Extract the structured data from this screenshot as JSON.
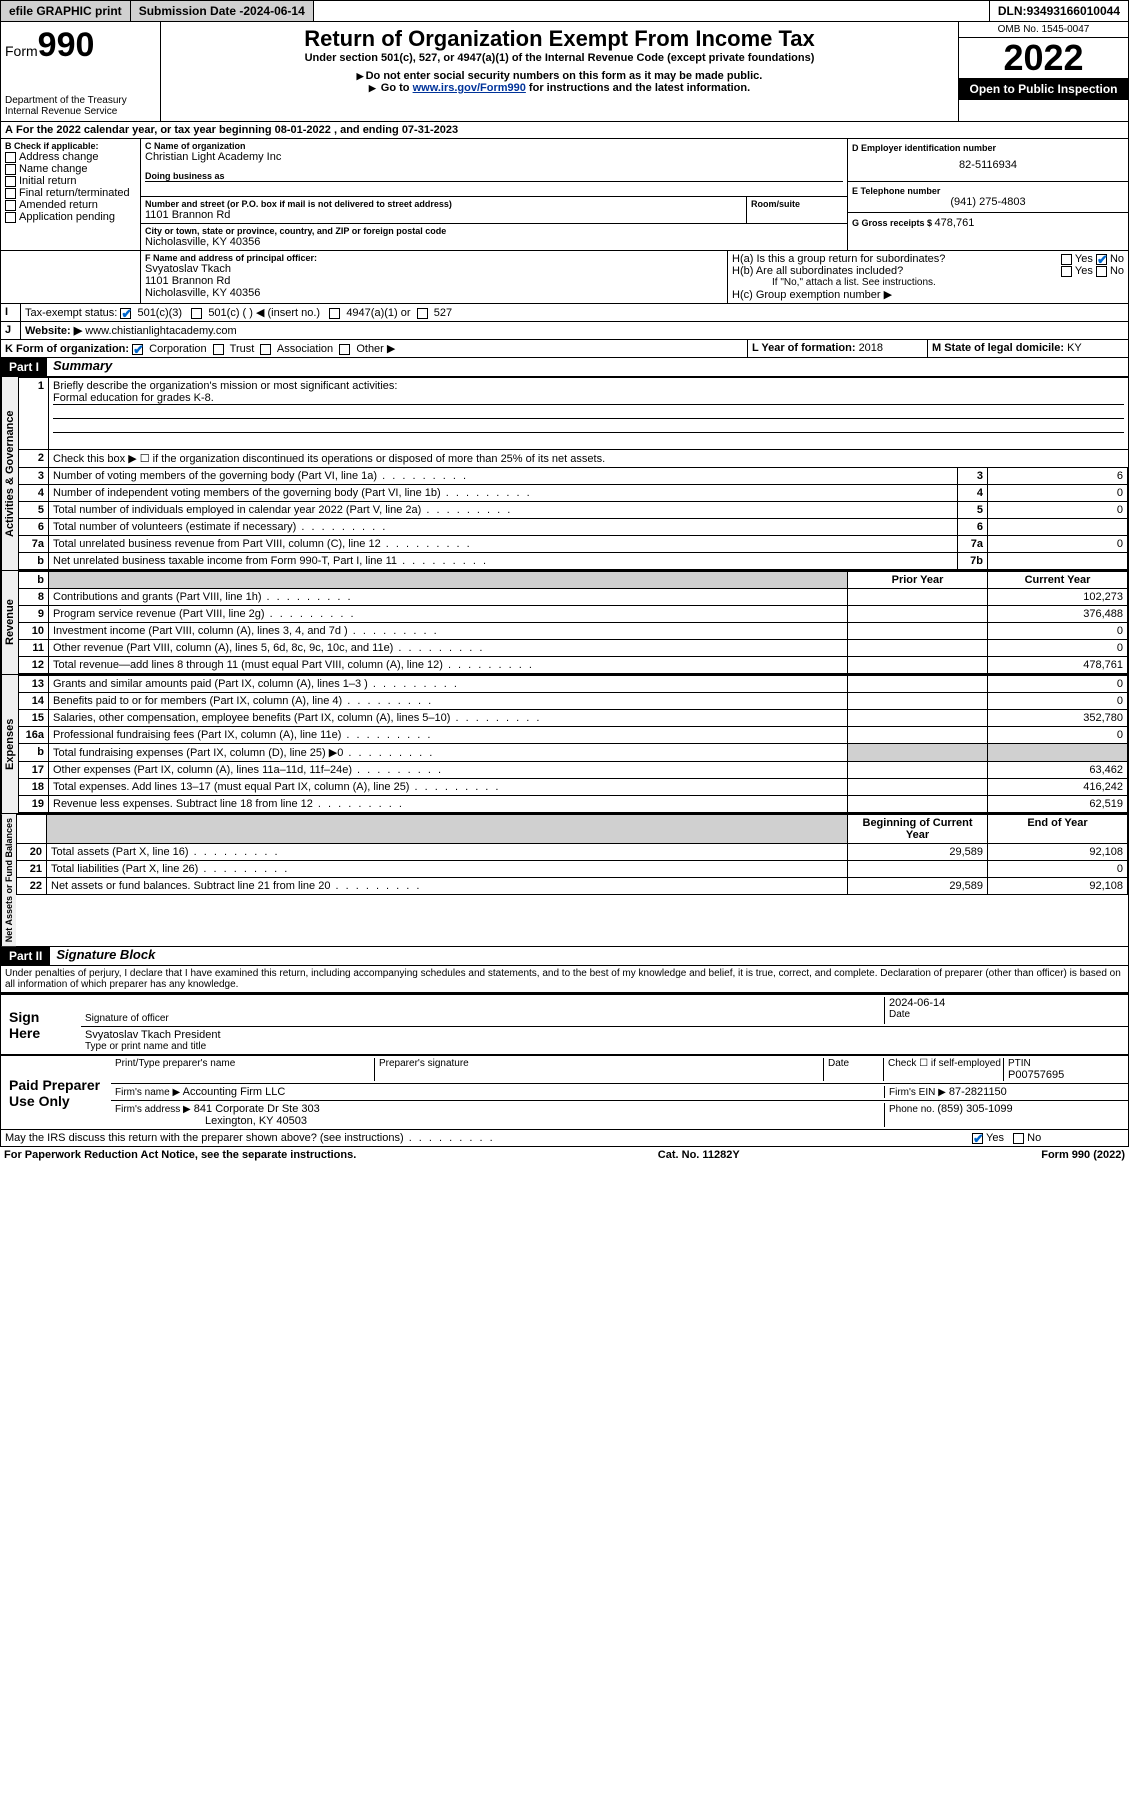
{
  "topbar": {
    "efile": "efile GRAPHIC print",
    "submission_label": "Submission Date - ",
    "submission_date": "2024-06-14",
    "dln_label": "DLN: ",
    "dln": "93493166010044"
  },
  "header": {
    "form_prefix": "Form",
    "form_number": "990",
    "dept": "Department of the Treasury",
    "irs": "Internal Revenue Service",
    "title": "Return of Organization Exempt From Income Tax",
    "subtitle": "Under section 501(c), 527, or 4947(a)(1) of the Internal Revenue Code (except private foundations)",
    "note1": "Do not enter social security numbers on this form as it may be made public.",
    "note2_prefix": "Go to ",
    "note2_link": "www.irs.gov/Form990",
    "note2_suffix": " for instructions and the latest information.",
    "omb": "OMB No. 1545-0047",
    "year": "2022",
    "open": "Open to Public Inspection"
  },
  "line_a": {
    "text": "For the 2022 calendar year, or tax year beginning ",
    "begin": "08-01-2022",
    "mid": " , and ending ",
    "end": "07-31-2023"
  },
  "section_b": {
    "label": "B Check if applicable:",
    "opts": [
      "Address change",
      "Name change",
      "Initial return",
      "Final return/terminated",
      "Amended return",
      "Application pending"
    ]
  },
  "section_c": {
    "name_label": "C Name of organization",
    "name": "Christian Light Academy Inc",
    "dba_label": "Doing business as",
    "dba": "",
    "addr_label": "Number and street (or P.O. box if mail is not delivered to street address)",
    "room_label": "Room/suite",
    "addr": "1101 Brannon Rd",
    "city_label": "City or town, state or province, country, and ZIP or foreign postal code",
    "city": "Nicholasville, KY  40356"
  },
  "section_d": {
    "label": "D Employer identification number",
    "value": "82-5116934"
  },
  "section_e": {
    "label": "E Telephone number",
    "value": "(941) 275-4803"
  },
  "section_g": {
    "label": "G Gross receipts $ ",
    "value": "478,761"
  },
  "section_f": {
    "label": "F Name and address of principal officer:",
    "name": "Svyatoslav Tkach",
    "addr1": "1101 Brannon Rd",
    "addr2": "Nicholasville, KY  40356"
  },
  "section_h": {
    "ha": "H(a)  Is this a group return for subordinates?",
    "hb": "H(b)  Are all subordinates included?",
    "hb_note": "If \"No,\" attach a list. See instructions.",
    "hc": "H(c)  Group exemption number ▶",
    "yes": "Yes",
    "no": "No"
  },
  "section_i": {
    "label": "Tax-exempt status:",
    "opts": [
      "501(c)(3)",
      "501(c) (  ) ◀ (insert no.)",
      "4947(a)(1) or",
      "527"
    ]
  },
  "section_j": {
    "label": "Website: ▶",
    "value": "www.chistianlightacademy.com"
  },
  "section_k": {
    "label": "K Form of organization:",
    "opts": [
      "Corporation",
      "Trust",
      "Association",
      "Other ▶"
    ]
  },
  "section_l": {
    "label": "L Year of formation: ",
    "value": "2018"
  },
  "section_m": {
    "label": "M State of legal domicile: ",
    "value": "KY"
  },
  "part1": {
    "hdr": "Part I",
    "title": "Summary",
    "q1": "Briefly describe the organization's mission or most significant activities:",
    "q1_ans": "Formal education for grades K-8.",
    "q2": "Check this box ▶ ☐  if the organization discontinued its operations or disposed of more than 25% of its net assets.",
    "rows_gov": [
      {
        "n": "3",
        "t": "Number of voting members of the governing body (Part VI, line 1a)",
        "b": "3",
        "v": "6"
      },
      {
        "n": "4",
        "t": "Number of independent voting members of the governing body (Part VI, line 1b)",
        "b": "4",
        "v": "0"
      },
      {
        "n": "5",
        "t": "Total number of individuals employed in calendar year 2022 (Part V, line 2a)",
        "b": "5",
        "v": "0"
      },
      {
        "n": "6",
        "t": "Total number of volunteers (estimate if necessary)",
        "b": "6",
        "v": ""
      },
      {
        "n": "7a",
        "t": "Total unrelated business revenue from Part VIII, column (C), line 12",
        "b": "7a",
        "v": "0"
      },
      {
        "n": "b",
        "t": "Net unrelated business taxable income from Form 990-T, Part I, line 11",
        "b": "7b",
        "v": ""
      }
    ],
    "col_prior": "Prior Year",
    "col_curr": "Current Year",
    "rows_rev": [
      {
        "n": "8",
        "t": "Contributions and grants (Part VIII, line 1h)",
        "p": "",
        "c": "102,273"
      },
      {
        "n": "9",
        "t": "Program service revenue (Part VIII, line 2g)",
        "p": "",
        "c": "376,488"
      },
      {
        "n": "10",
        "t": "Investment income (Part VIII, column (A), lines 3, 4, and 7d )",
        "p": "",
        "c": "0"
      },
      {
        "n": "11",
        "t": "Other revenue (Part VIII, column (A), lines 5, 6d, 8c, 9c, 10c, and 11e)",
        "p": "",
        "c": "0"
      },
      {
        "n": "12",
        "t": "Total revenue—add lines 8 through 11 (must equal Part VIII, column (A), line 12)",
        "p": "",
        "c": "478,761"
      }
    ],
    "rows_exp": [
      {
        "n": "13",
        "t": "Grants and similar amounts paid (Part IX, column (A), lines 1–3 )",
        "p": "",
        "c": "0"
      },
      {
        "n": "14",
        "t": "Benefits paid to or for members (Part IX, column (A), line 4)",
        "p": "",
        "c": "0"
      },
      {
        "n": "15",
        "t": "Salaries, other compensation, employee benefits (Part IX, column (A), lines 5–10)",
        "p": "",
        "c": "352,780"
      },
      {
        "n": "16a",
        "t": "Professional fundraising fees (Part IX, column (A), line 11e)",
        "p": "",
        "c": "0"
      },
      {
        "n": "b",
        "t": "Total fundraising expenses (Part IX, column (D), line 25) ▶0",
        "p": "—",
        "c": "—"
      },
      {
        "n": "17",
        "t": "Other expenses (Part IX, column (A), lines 11a–11d, 11f–24e)",
        "p": "",
        "c": "63,462"
      },
      {
        "n": "18",
        "t": "Total expenses. Add lines 13–17 (must equal Part IX, column (A), line 25)",
        "p": "",
        "c": "416,242"
      },
      {
        "n": "19",
        "t": "Revenue less expenses. Subtract line 18 from line 12",
        "p": "",
        "c": "62,519"
      }
    ],
    "col_boy": "Beginning of Current Year",
    "col_eoy": "End of Year",
    "rows_net": [
      {
        "n": "20",
        "t": "Total assets (Part X, line 16)",
        "p": "29,589",
        "c": "92,108"
      },
      {
        "n": "21",
        "t": "Total liabilities (Part X, line 26)",
        "p": "",
        "c": "0"
      },
      {
        "n": "22",
        "t": "Net assets or fund balances. Subtract line 21 from line 20",
        "p": "29,589",
        "c": "92,108"
      }
    ],
    "vlabels": [
      "Activities & Governance",
      "Revenue",
      "Expenses",
      "Net Assets or Fund Balances"
    ]
  },
  "part2": {
    "hdr": "Part II",
    "title": "Signature Block",
    "decl": "Under penalties of perjury, I declare that I have examined this return, including accompanying schedules and statements, and to the best of my knowledge and belief, it is true, correct, and complete. Declaration of preparer (other than officer) is based on all information of which preparer has any knowledge.",
    "sign_here": "Sign Here",
    "sig_officer": "Signature of officer",
    "sig_date_label": "Date",
    "sig_date": "2024-06-14",
    "officer_name": "Svyatoslav Tkach  President",
    "type_name": "Type or print name and title",
    "paid": "Paid Preparer Use Only",
    "prep_name_label": "Print/Type preparer's name",
    "prep_sig_label": "Preparer's signature",
    "date_label": "Date",
    "check_if": "Check ☐ if self-employed",
    "ptin_label": "PTIN",
    "ptin": "P00757695",
    "firm_name_label": "Firm's name    ▶",
    "firm_name": "Accounting Firm LLC",
    "firm_ein_label": "Firm's EIN ▶",
    "firm_ein": "87-2821150",
    "firm_addr_label": "Firm's address ▶",
    "firm_addr1": "841 Corporate Dr Ste 303",
    "firm_addr2": "Lexington, KY  40503",
    "phone_label": "Phone no. ",
    "phone": "(859) 305-1099",
    "discuss": "May the IRS discuss this return with the preparer shown above? (see instructions)",
    "yes": "Yes",
    "no": "No"
  },
  "footer": {
    "left": "For Paperwork Reduction Act Notice, see the separate instructions.",
    "mid": "Cat. No. 11282Y",
    "right": "Form 990 (2022)"
  }
}
